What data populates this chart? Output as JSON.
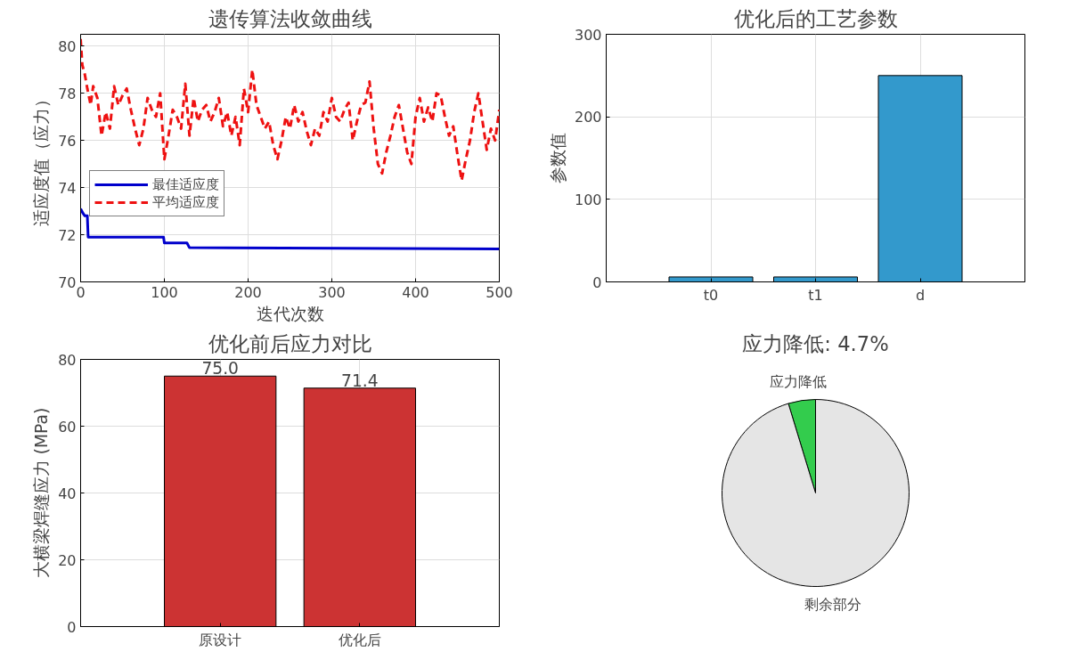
{
  "chart_data": [
    {
      "type": "line",
      "title": "遗传算法收敛曲线",
      "xlabel": "迭代次数",
      "ylabel": "适应度值（应力）",
      "xlim": [
        0,
        500
      ],
      "xticks": [
        0,
        100,
        200,
        300,
        400,
        500
      ],
      "ylim": [
        70,
        80.5
      ],
      "yticks": [
        70,
        72,
        74,
        76,
        78,
        80
      ],
      "grid": true,
      "legend": "left",
      "series": [
        {
          "name": "最佳适应度",
          "color": "#0000cc",
          "line_style": "solid",
          "x": [
            0,
            3,
            5,
            8,
            9,
            99,
            100,
            127,
            130,
            500
          ],
          "values": [
            73.1,
            72.9,
            72.8,
            72.8,
            71.9,
            71.9,
            71.65,
            71.65,
            71.45,
            71.4
          ]
        },
        {
          "name": "平均适应度",
          "color": "#ee1111",
          "line_style": "dashed",
          "x": [
            0,
            2,
            5,
            8,
            12,
            15,
            20,
            25,
            30,
            35,
            40,
            45,
            50,
            55,
            60,
            65,
            70,
            75,
            80,
            85,
            90,
            95,
            100,
            105,
            110,
            115,
            120,
            125,
            130,
            135,
            140,
            145,
            150,
            155,
            160,
            165,
            170,
            175,
            180,
            185,
            190,
            195,
            200,
            205,
            210,
            215,
            220,
            225,
            230,
            235,
            240,
            245,
            250,
            255,
            260,
            265,
            270,
            275,
            280,
            285,
            290,
            295,
            300,
            305,
            310,
            315,
            320,
            325,
            330,
            335,
            340,
            345,
            350,
            355,
            360,
            365,
            370,
            375,
            380,
            385,
            390,
            395,
            400,
            405,
            410,
            415,
            420,
            425,
            430,
            435,
            440,
            445,
            450,
            455,
            460,
            465,
            470,
            475,
            480,
            485,
            490,
            495,
            500
          ],
          "values": [
            80.3,
            79.2,
            78.8,
            78.2,
            77.5,
            78.3,
            77.8,
            76.2,
            77.2,
            76.5,
            78.3,
            77.5,
            77.9,
            78.2,
            77.3,
            76.5,
            75.8,
            76.5,
            77.8,
            77.3,
            77.0,
            78.0,
            75.2,
            76.2,
            77.3,
            77.0,
            76.5,
            78.4,
            76.2,
            77.8,
            76.8,
            77.3,
            77.5,
            76.8,
            77.2,
            77.8,
            76.6,
            77.2,
            76.2,
            77.0,
            75.8,
            78.2,
            77.2,
            79.0,
            77.5,
            77.0,
            76.5,
            76.8,
            75.8,
            75.2,
            76.0,
            77.0,
            76.5,
            77.5,
            76.8,
            77.2,
            76.4,
            75.8,
            76.5,
            76.2,
            77.2,
            76.8,
            77.8,
            77.0,
            76.8,
            77.3,
            77.6,
            76.0,
            76.8,
            77.5,
            77.6,
            78.5,
            76.5,
            75.0,
            74.6,
            75.5,
            76.2,
            77.0,
            77.5,
            76.5,
            75.5,
            75.0,
            77.0,
            77.8,
            76.8,
            77.4,
            76.8,
            78.0,
            77.9,
            77.0,
            76.2,
            76.6,
            75.4,
            74.3,
            75.2,
            76.0,
            77.2,
            78.0,
            76.8,
            75.6,
            76.5,
            76.0,
            77.3
          ]
        }
      ]
    },
    {
      "type": "bar",
      "title": "优化后的工艺参数",
      "ylabel": "参数值",
      "categories": [
        "t0",
        "t1",
        "d"
      ],
      "values": [
        6,
        6,
        250
      ],
      "color": "#3399cc",
      "ylim": [
        0,
        300
      ],
      "yticks": [
        0,
        100,
        200,
        300
      ],
      "grid": true
    },
    {
      "type": "bar",
      "title": "优化前后应力对比",
      "ylabel": "大横梁焊缝应力 (MPa)",
      "categories": [
        "原设计",
        "优化后"
      ],
      "values": [
        75.0,
        71.4
      ],
      "color": "#cc3333",
      "ylim": [
        0,
        80
      ],
      "yticks": [
        0,
        20,
        40,
        60,
        80
      ],
      "grid": true,
      "value_labels": [
        "75.0",
        "71.4"
      ]
    },
    {
      "type": "pie",
      "title": "应力降低: 4.7%",
      "categories": [
        "应力降低",
        "剩余部分"
      ],
      "values": [
        4.7,
        95.3
      ],
      "colors": [
        "#33cc4d",
        "#e5e5e5"
      ]
    }
  ]
}
